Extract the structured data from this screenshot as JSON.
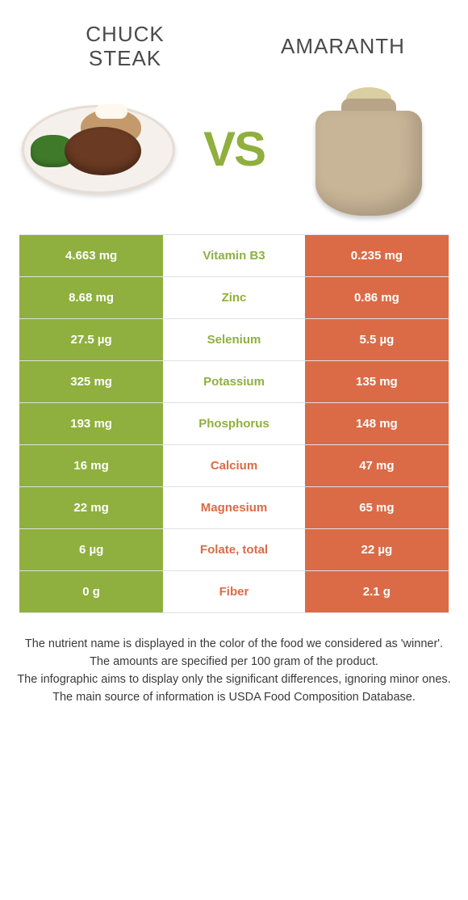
{
  "header": {
    "left_title": "CHUCK\nSTEAK",
    "right_title": "AMARANTH",
    "vs": "VS"
  },
  "colors": {
    "green": "#8fb03e",
    "orange": "#db6b47",
    "background": "#ffffff",
    "row_border": "#e0e0e0"
  },
  "table": {
    "left_bg": "#8fb03e",
    "right_bg": "#db6b47",
    "rows": [
      {
        "left": "4.663 mg",
        "nutrient": "Vitamin B3",
        "right": "0.235 mg",
        "winner": "left"
      },
      {
        "left": "8.68 mg",
        "nutrient": "Zinc",
        "right": "0.86 mg",
        "winner": "left"
      },
      {
        "left": "27.5 µg",
        "nutrient": "Selenium",
        "right": "5.5 µg",
        "winner": "left"
      },
      {
        "left": "325 mg",
        "nutrient": "Potassium",
        "right": "135 mg",
        "winner": "left"
      },
      {
        "left": "193 mg",
        "nutrient": "Phosphorus",
        "right": "148 mg",
        "winner": "left"
      },
      {
        "left": "16 mg",
        "nutrient": "Calcium",
        "right": "47 mg",
        "winner": "right"
      },
      {
        "left": "22 mg",
        "nutrient": "Magnesium",
        "right": "65 mg",
        "winner": "right"
      },
      {
        "left": "6 µg",
        "nutrient": "Folate, total",
        "right": "22 µg",
        "winner": "right"
      },
      {
        "left": "0 g",
        "nutrient": "Fiber",
        "right": "2.1 g",
        "winner": "right"
      }
    ]
  },
  "footer": {
    "lines": [
      "The nutrient name is displayed in the color of the food we considered as 'winner'.",
      "The amounts are specified per 100 gram of the product.",
      "The infographic aims to display only the significant differences, ignoring minor ones.",
      "The main source of information is USDA Food Composition Database."
    ]
  }
}
